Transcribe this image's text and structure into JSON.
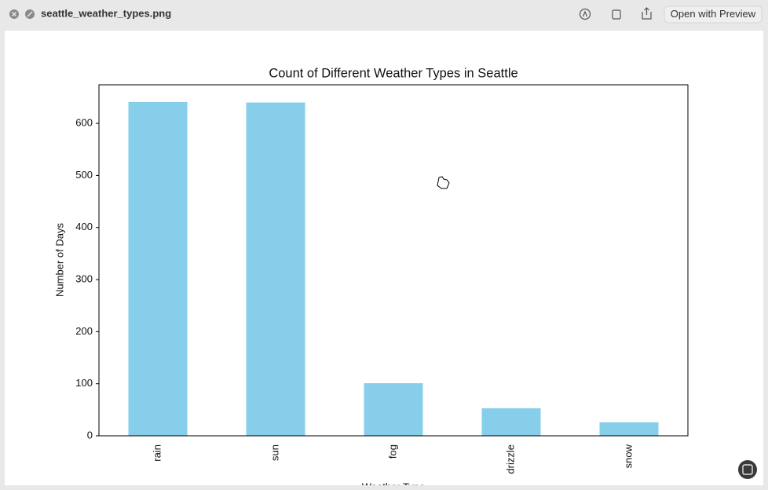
{
  "window": {
    "title": "seattle_weather_types.png",
    "open_button": "Open with Preview"
  },
  "chart_data": {
    "type": "bar",
    "title": "Count of Different Weather Types in Seattle",
    "x_label": "Weather Type",
    "y_label": "Number of Days",
    "categories": [
      "rain",
      "sun",
      "fog",
      "drizzle",
      "snow"
    ],
    "values": [
      641,
      640,
      101,
      53,
      26
    ],
    "color": "#87ceeb",
    "ylim": [
      0,
      674
    ],
    "yticks": [
      0,
      100,
      200,
      300,
      400,
      500,
      600
    ],
    "grid": false
  }
}
